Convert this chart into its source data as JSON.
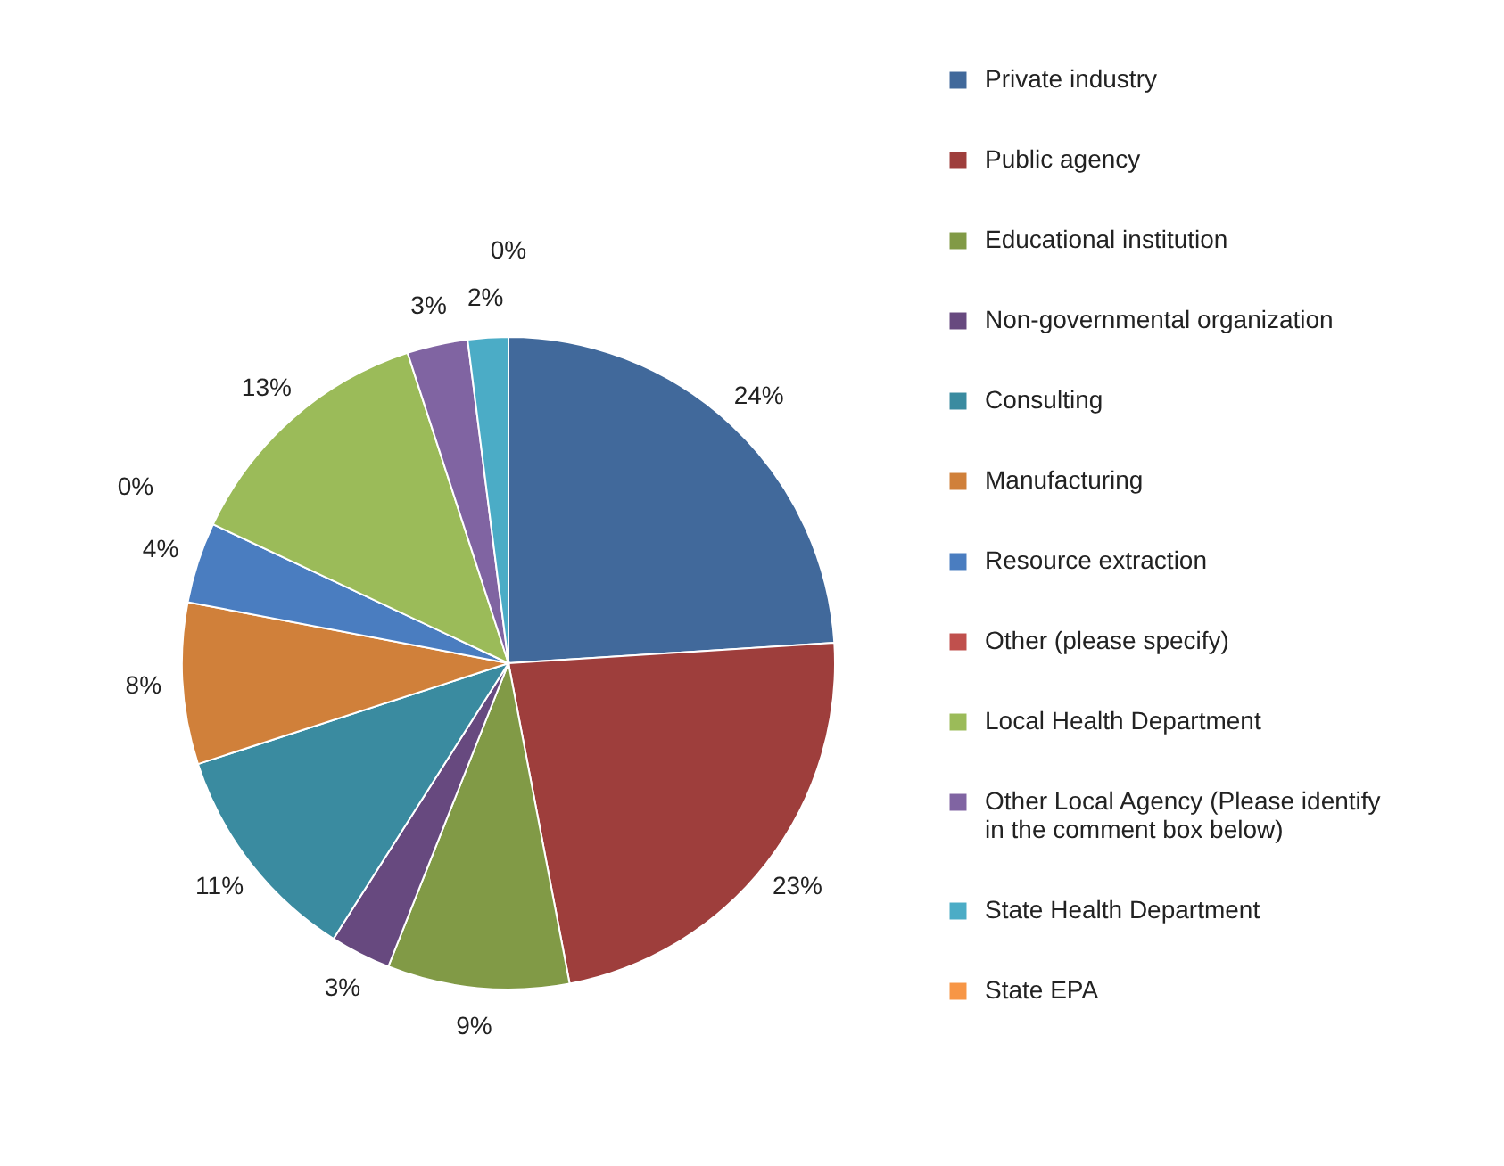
{
  "chart_data": {
    "type": "pie",
    "categories": [
      "Private industry",
      "Public agency",
      "Educational institution",
      "Non-governmental organization",
      "Consulting",
      "Manufacturing",
      "Resource extraction",
      "Other (please specify)",
      "Local Health Department",
      "Other Local Agency (Please identify in the comment box below)",
      "State Health Department",
      "State EPA"
    ],
    "values": [
      24,
      23,
      9,
      3,
      11,
      8,
      4,
      0,
      13,
      3,
      2,
      0
    ],
    "value_labels": [
      "24%",
      "23%",
      "9%",
      "3%",
      "11%",
      "8%",
      "4%",
      "0%",
      "13%",
      "3%",
      "2%",
      "0%"
    ],
    "colors": [
      "#41699b",
      "#9e3e3c",
      "#819a46",
      "#67497f",
      "#3a8ba0",
      "#d0803a",
      "#4a7dc0",
      "#c0504d",
      "#9bbb59",
      "#8064a2",
      "#4bacc6",
      "#f79646"
    ],
    "legend": "right"
  }
}
